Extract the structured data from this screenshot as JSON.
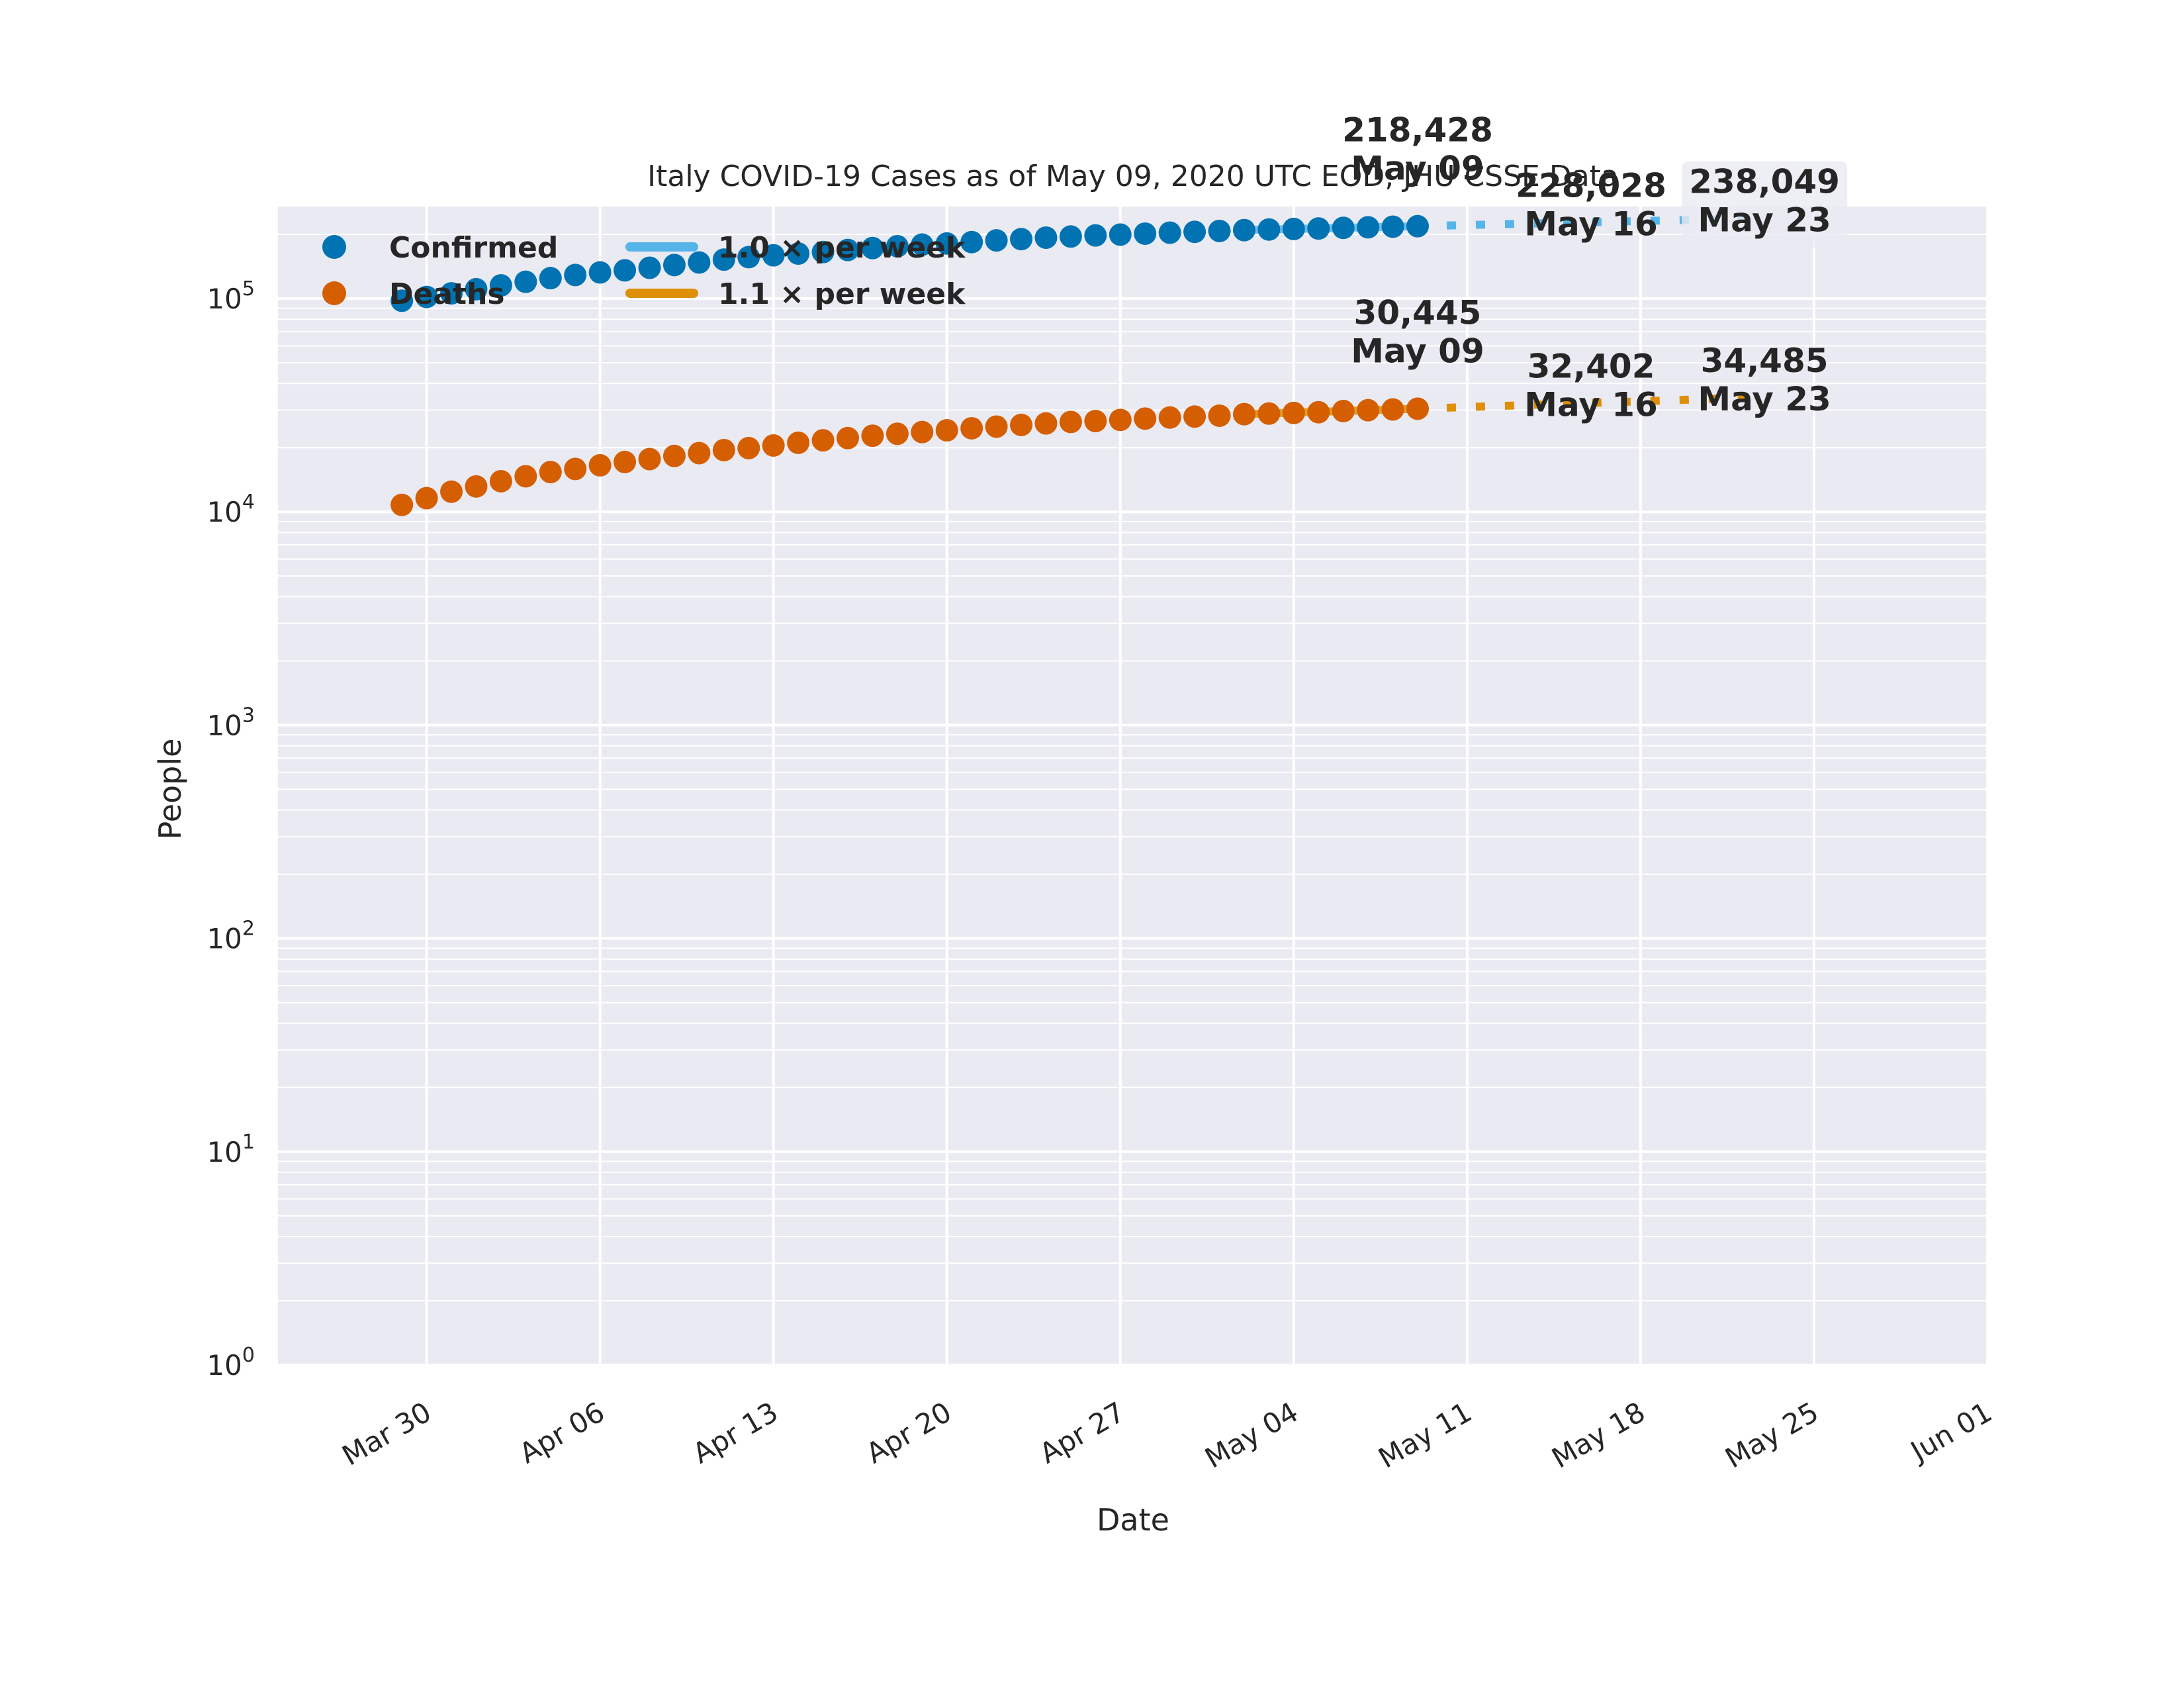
{
  "chart_data": {
    "type": "scatter",
    "title": "Italy COVID-19 Cases as of May 09, 2020 UTC EOD, JHU CSSE Data",
    "xlabel": "Date",
    "ylabel": "People",
    "yscale": "log",
    "ylim": [
      1,
      270000
    ],
    "xlim": [
      "2020-03-24",
      "2020-06-01"
    ],
    "grid": true,
    "legend_position": "top-left",
    "x_ticks": [
      "Mar 30",
      "Apr 06",
      "Apr 13",
      "Apr 20",
      "Apr 27",
      "May 04",
      "May 11",
      "May 18",
      "May 25",
      "Jun 01"
    ],
    "x_tick_dates": [
      "2020-03-30",
      "2020-04-06",
      "2020-04-13",
      "2020-04-20",
      "2020-04-27",
      "2020-05-04",
      "2020-05-11",
      "2020-05-18",
      "2020-05-25",
      "2020-06-01"
    ],
    "y_ticks": [
      {
        "base": "10",
        "exp": "0",
        "value": 1
      },
      {
        "base": "10",
        "exp": "1",
        "value": 10
      },
      {
        "base": "10",
        "exp": "2",
        "value": 100
      },
      {
        "base": "10",
        "exp": "3",
        "value": 1000
      },
      {
        "base": "10",
        "exp": "4",
        "value": 10000
      },
      {
        "base": "10",
        "exp": "5",
        "value": 100000
      }
    ],
    "x": [
      "2020-03-29",
      "2020-03-30",
      "2020-03-31",
      "2020-04-01",
      "2020-04-02",
      "2020-04-03",
      "2020-04-04",
      "2020-04-05",
      "2020-04-06",
      "2020-04-07",
      "2020-04-08",
      "2020-04-09",
      "2020-04-10",
      "2020-04-11",
      "2020-04-12",
      "2020-04-13",
      "2020-04-14",
      "2020-04-15",
      "2020-04-16",
      "2020-04-17",
      "2020-04-18",
      "2020-04-19",
      "2020-04-20",
      "2020-04-21",
      "2020-04-22",
      "2020-04-23",
      "2020-04-24",
      "2020-04-25",
      "2020-04-26",
      "2020-04-27",
      "2020-04-28",
      "2020-04-29",
      "2020-04-30",
      "2020-05-01",
      "2020-05-02",
      "2020-05-03",
      "2020-05-04",
      "2020-05-05",
      "2020-05-06",
      "2020-05-07",
      "2020-05-08",
      "2020-05-09"
    ],
    "series": [
      {
        "name": "Confirmed",
        "color": "#0173b2",
        "values": [
          97689,
          101739,
          105792,
          110574,
          115242,
          119827,
          124632,
          128948,
          132547,
          135586,
          139422,
          143626,
          147577,
          152271,
          156363,
          159516,
          162488,
          165155,
          168941,
          172434,
          175925,
          178972,
          181228,
          183957,
          187327,
          189973,
          192994,
          195351,
          197675,
          199414,
          201505,
          203591,
          205463,
          207428,
          209328,
          210717,
          211938,
          213013,
          214457,
          215858,
          217185,
          218428
        ]
      },
      {
        "name": "Deaths",
        "color": "#d55e00",
        "values": [
          10779,
          11591,
          12428,
          13155,
          13915,
          14681,
          15362,
          15887,
          16523,
          17127,
          17669,
          18279,
          18849,
          19468,
          19899,
          20465,
          21067,
          21645,
          22170,
          22745,
          23227,
          23660,
          24114,
          24648,
          25085,
          25549,
          25969,
          26384,
          26644,
          26977,
          27359,
          27682,
          27967,
          28236,
          28710,
          28884,
          29079,
          29315,
          29684,
          29958,
          30201,
          30445
        ]
      }
    ],
    "fits": [
      {
        "name": "1.0 × per week",
        "color": "#56b4e9",
        "fit_x": [
          "2020-05-02",
          "2020-05-09"
        ],
        "fit_y": [
          209328,
          218428
        ],
        "projection_x": [
          "2020-05-09",
          "2020-05-16",
          "2020-05-23"
        ],
        "projection_y": [
          218428,
          228028,
          238049
        ]
      },
      {
        "name": "1.1 × per week",
        "color": "#de8f05",
        "fit_x": [
          "2020-05-02",
          "2020-05-09"
        ],
        "fit_y": [
          28710,
          30445
        ],
        "projection_x": [
          "2020-05-09",
          "2020-05-16",
          "2020-05-23"
        ],
        "projection_y": [
          30445,
          32402,
          34485
        ]
      }
    ],
    "annotations": [
      {
        "value": "218,428",
        "date": "May 09",
        "x": "2020-05-09",
        "y": 218428
      },
      {
        "value": "228,028",
        "date": "May 16",
        "x": "2020-05-16",
        "y": 228028
      },
      {
        "value": "238,049",
        "date": "May 23",
        "x": "2020-05-23",
        "y": 238049
      },
      {
        "value": "30,445",
        "date": "May 09",
        "x": "2020-05-09",
        "y": 30445
      },
      {
        "value": "32,402",
        "date": "May 16",
        "x": "2020-05-16",
        "y": 32402
      },
      {
        "value": "34,485",
        "date": "May 23",
        "x": "2020-05-23",
        "y": 34485
      }
    ]
  },
  "style": {
    "plot_background": "#eaeaf2",
    "grid_color": "#ffffff",
    "text_color": "#262626"
  }
}
